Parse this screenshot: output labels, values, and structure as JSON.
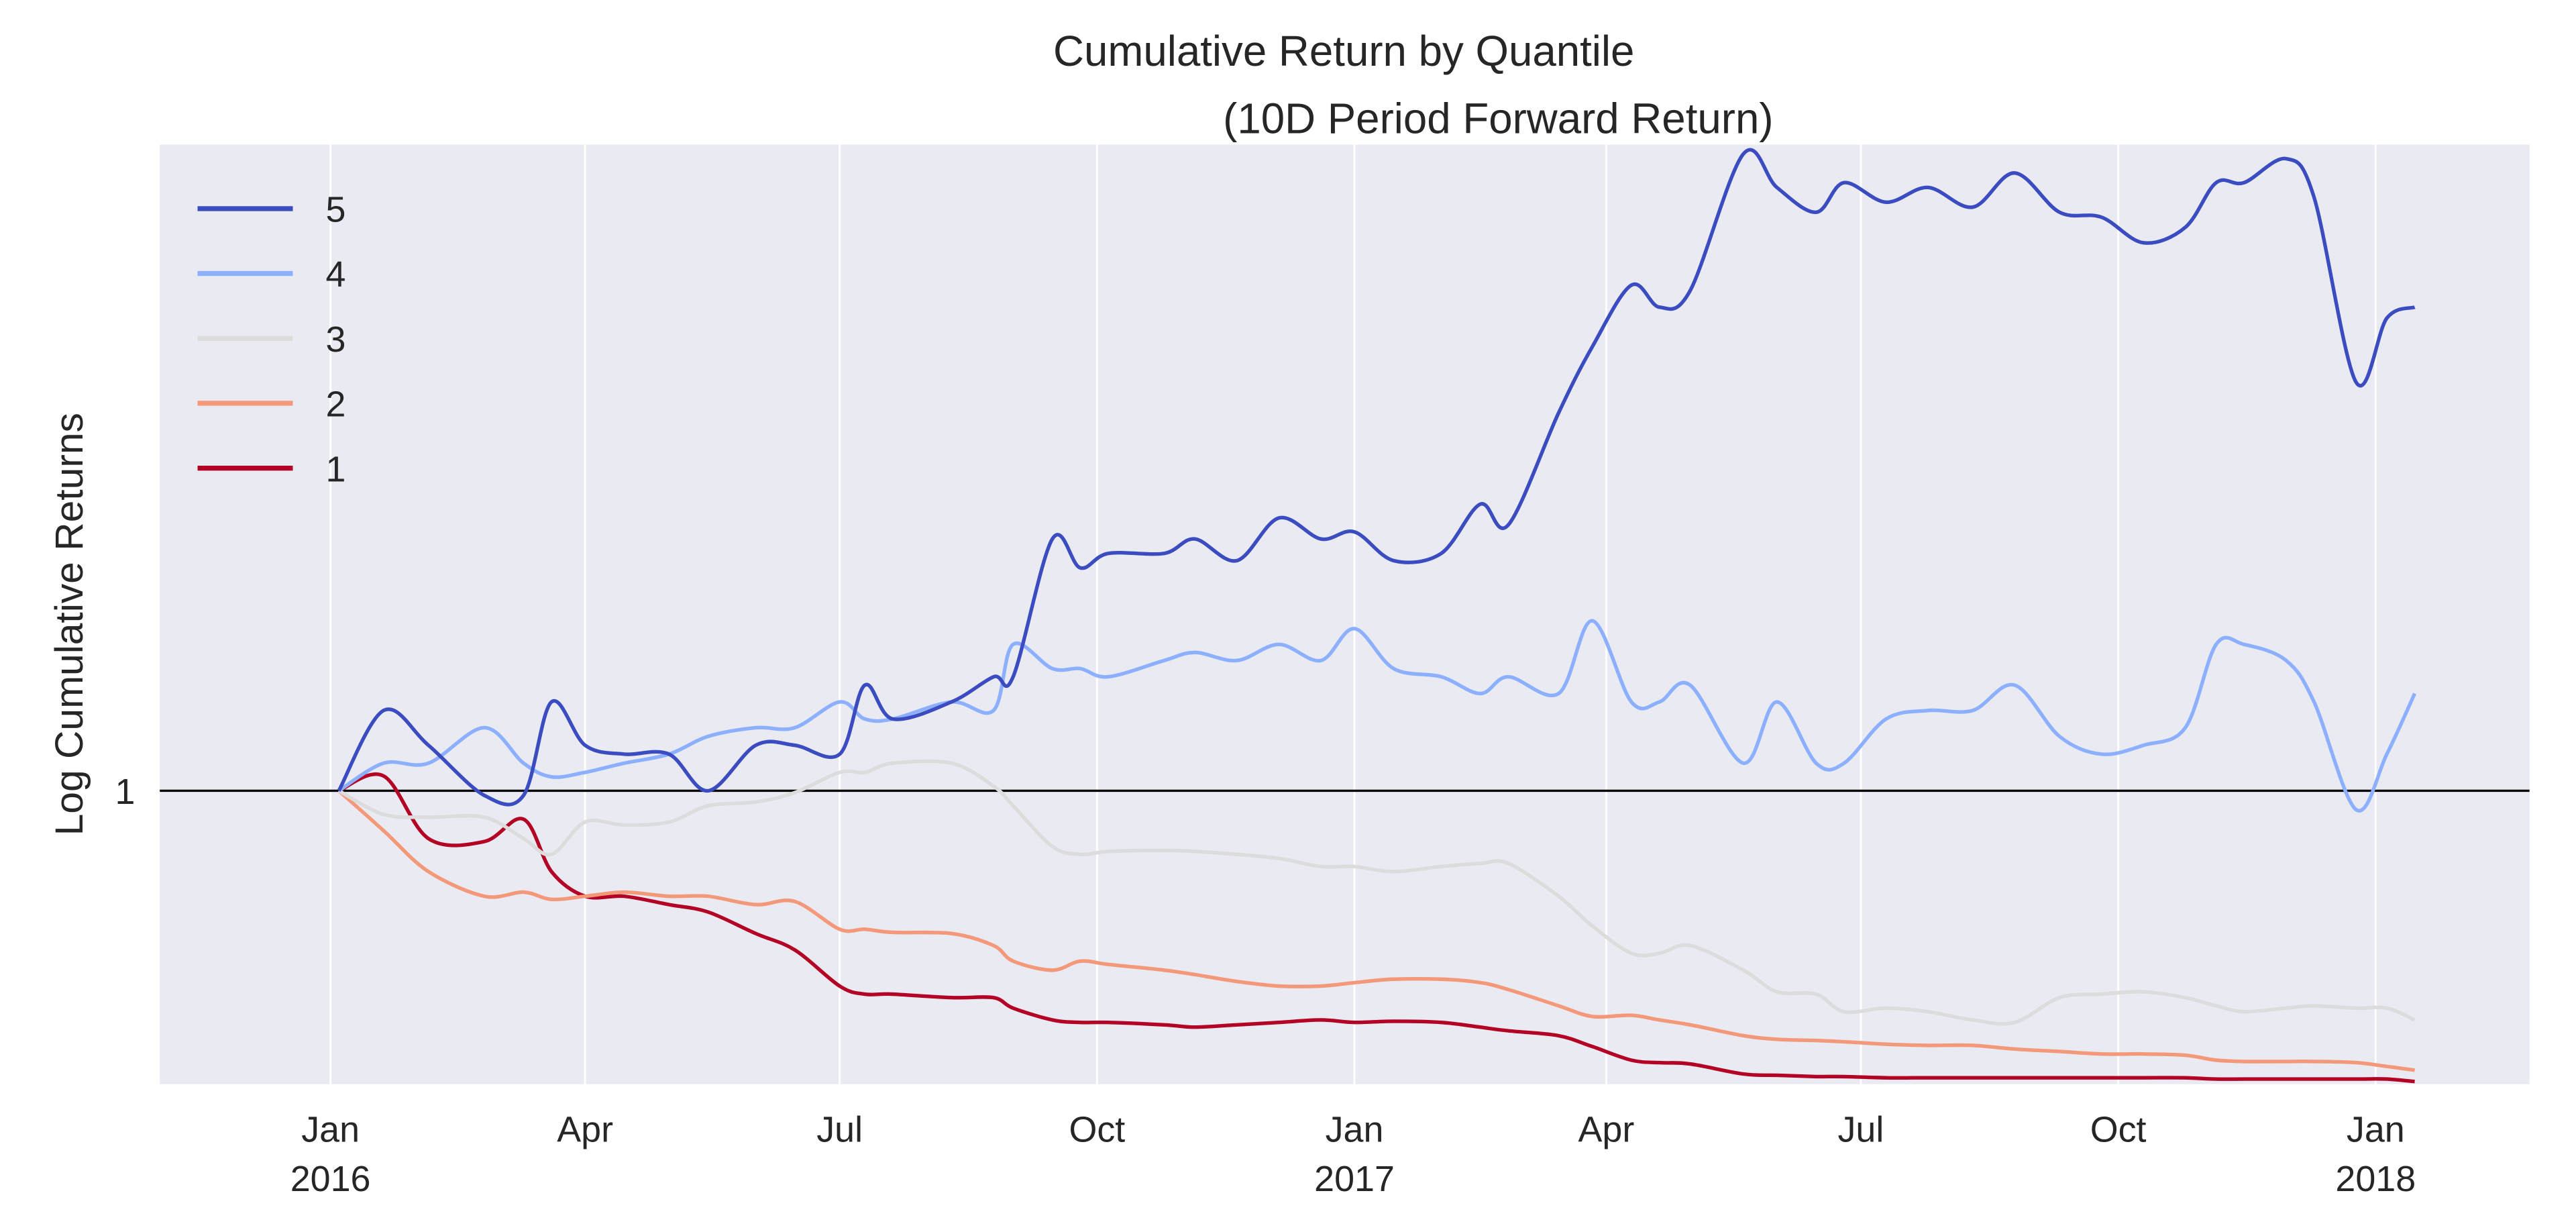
{
  "chart_data": {
    "type": "line",
    "title": "Cumulative Return by Quantile",
    "subtitle": "(10D Period Forward Return)",
    "xlabel": "",
    "ylabel": "Log Cumulative Returns",
    "yscale": "log",
    "ylim": [
      0.73,
      2.0
    ],
    "xlim": [
      "2015-11-01",
      "2018-02-25"
    ],
    "grid": true,
    "legend_placement": "top-left",
    "y_ticks": [
      {
        "value": 1,
        "label": "1"
      }
    ],
    "x_ticks": [
      {
        "date": "2016-01-01",
        "label": "Jan",
        "year": "2016"
      },
      {
        "date": "2016-04-01",
        "label": "Apr",
        "year": ""
      },
      {
        "date": "2016-07-01",
        "label": "Jul",
        "year": ""
      },
      {
        "date": "2016-10-01",
        "label": "Oct",
        "year": ""
      },
      {
        "date": "2017-01-01",
        "label": "Jan",
        "year": "2017"
      },
      {
        "date": "2017-04-01",
        "label": "Apr",
        "year": ""
      },
      {
        "date": "2017-07-01",
        "label": "Jul",
        "year": ""
      },
      {
        "date": "2017-10-01",
        "label": "Oct",
        "year": ""
      },
      {
        "date": "2018-01-01",
        "label": "Jan",
        "year": "2018"
      }
    ],
    "reference_line": {
      "y": 1,
      "color": "#000000"
    },
    "x": [
      "2016-01-04",
      "2016-01-20",
      "2016-02-05",
      "2016-02-25",
      "2016-03-10",
      "2016-03-20",
      "2016-04-01",
      "2016-04-15",
      "2016-05-01",
      "2016-05-15",
      "2016-06-01",
      "2016-06-15",
      "2016-07-01",
      "2016-07-10",
      "2016-07-20",
      "2016-08-10",
      "2016-08-25",
      "2016-09-01",
      "2016-09-15",
      "2016-09-25",
      "2016-10-05",
      "2016-10-25",
      "2016-11-05",
      "2016-11-20",
      "2016-12-05",
      "2016-12-20",
      "2017-01-01",
      "2017-01-15",
      "2017-02-01",
      "2017-02-15",
      "2017-02-25",
      "2017-03-15",
      "2017-03-27",
      "2017-04-10",
      "2017-04-20",
      "2017-05-01",
      "2017-05-20",
      "2017-06-01",
      "2017-06-15",
      "2017-06-25",
      "2017-07-10",
      "2017-07-25",
      "2017-08-10",
      "2017-08-25",
      "2017-09-10",
      "2017-09-25",
      "2017-10-10",
      "2017-10-25",
      "2017-11-05",
      "2017-11-15",
      "2017-11-30",
      "2017-12-10",
      "2017-12-25",
      "2018-01-05",
      "2018-01-15"
    ],
    "series": [
      {
        "name": "5",
        "color": "#3b4cc0",
        "values": [
          1.0,
          1.09,
          1.05,
          0.995,
          0.995,
          1.1,
          1.05,
          1.04,
          1.04,
          1.0,
          1.05,
          1.05,
          1.04,
          1.12,
          1.08,
          1.1,
          1.13,
          1.13,
          1.31,
          1.27,
          1.29,
          1.29,
          1.31,
          1.28,
          1.34,
          1.31,
          1.32,
          1.28,
          1.29,
          1.36,
          1.33,
          1.5,
          1.61,
          1.72,
          1.68,
          1.71,
          1.98,
          1.91,
          1.86,
          1.92,
          1.88,
          1.91,
          1.87,
          1.94,
          1.86,
          1.85,
          1.8,
          1.83,
          1.92,
          1.92,
          1.97,
          1.89,
          1.55,
          1.66,
          1.68
        ]
      },
      {
        "name": "4",
        "color": "#8db0fe",
        "values": [
          1.0,
          1.03,
          1.03,
          1.07,
          1.03,
          1.015,
          1.02,
          1.03,
          1.04,
          1.06,
          1.07,
          1.07,
          1.1,
          1.08,
          1.08,
          1.1,
          1.09,
          1.17,
          1.14,
          1.14,
          1.13,
          1.15,
          1.16,
          1.15,
          1.17,
          1.15,
          1.19,
          1.14,
          1.13,
          1.11,
          1.13,
          1.11,
          1.2,
          1.1,
          1.1,
          1.12,
          1.03,
          1.1,
          1.03,
          1.03,
          1.08,
          1.09,
          1.09,
          1.12,
          1.06,
          1.04,
          1.05,
          1.07,
          1.17,
          1.17,
          1.15,
          1.1,
          0.98,
          1.04,
          1.11
        ]
      },
      {
        "name": "3",
        "color": "#dddcdc",
        "values": [
          1.0,
          0.975,
          0.972,
          0.972,
          0.95,
          0.934,
          0.967,
          0.964,
          0.967,
          0.984,
          0.988,
          0.998,
          1.02,
          1.02,
          1.03,
          1.03,
          1.005,
          0.984,
          0.942,
          0.934,
          0.937,
          0.938,
          0.937,
          0.934,
          0.93,
          0.922,
          0.922,
          0.917,
          0.922,
          0.925,
          0.925,
          0.893,
          0.865,
          0.84,
          0.84,
          0.847,
          0.825,
          0.806,
          0.804,
          0.789,
          0.792,
          0.789,
          0.782,
          0.78,
          0.801,
          0.804,
          0.806,
          0.801,
          0.794,
          0.789,
          0.792,
          0.794,
          0.792,
          0.792,
          0.782
        ]
      },
      {
        "name": "2",
        "color": "#f4987a",
        "values": [
          1.0,
          0.958,
          0.917,
          0.893,
          0.897,
          0.89,
          0.893,
          0.897,
          0.893,
          0.893,
          0.885,
          0.888,
          0.862,
          0.862,
          0.859,
          0.858,
          0.847,
          0.833,
          0.825,
          0.833,
          0.83,
          0.825,
          0.821,
          0.815,
          0.811,
          0.811,
          0.814,
          0.817,
          0.817,
          0.814,
          0.808,
          0.794,
          0.785,
          0.786,
          0.782,
          0.778,
          0.769,
          0.766,
          0.765,
          0.764,
          0.762,
          0.761,
          0.761,
          0.758,
          0.756,
          0.754,
          0.754,
          0.753,
          0.749,
          0.748,
          0.748,
          0.748,
          0.747,
          0.744,
          0.741
        ]
      },
      {
        "name": "1",
        "color": "#b40426",
        "values": [
          1.0,
          1.016,
          0.95,
          0.947,
          0.97,
          0.917,
          0.893,
          0.893,
          0.885,
          0.878,
          0.858,
          0.843,
          0.811,
          0.804,
          0.804,
          0.801,
          0.801,
          0.792,
          0.782,
          0.78,
          0.78,
          0.778,
          0.776,
          0.778,
          0.78,
          0.782,
          0.78,
          0.781,
          0.78,
          0.776,
          0.773,
          0.769,
          0.76,
          0.749,
          0.747,
          0.746,
          0.738,
          0.737,
          0.736,
          0.736,
          0.735,
          0.735,
          0.735,
          0.735,
          0.735,
          0.735,
          0.735,
          0.735,
          0.734,
          0.734,
          0.734,
          0.734,
          0.734,
          0.734,
          0.732
        ]
      }
    ],
    "background_color": "#eaeaf2",
    "grid_color": "#ffffff"
  }
}
